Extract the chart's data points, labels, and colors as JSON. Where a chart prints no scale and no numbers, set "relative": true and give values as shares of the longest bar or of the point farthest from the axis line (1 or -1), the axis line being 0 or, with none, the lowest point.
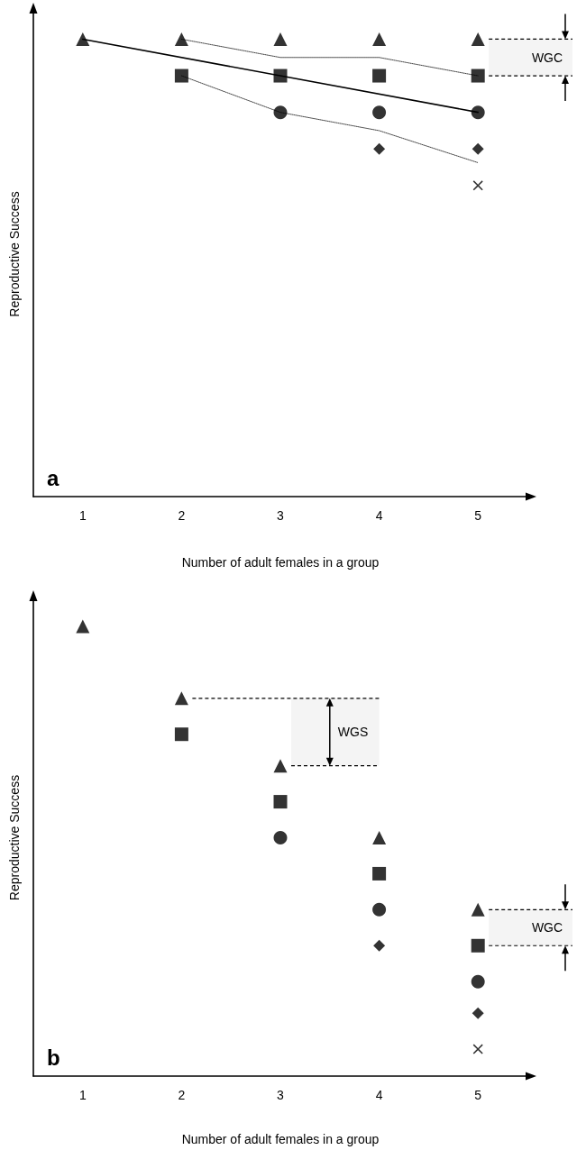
{
  "chart_data": [
    {
      "type": "scatter",
      "relative": true,
      "xlabel": "Number of adult females in a group",
      "ylabel": "Reproductive Success",
      "xlim": [
        0.5,
        5.5
      ],
      "xticks": [
        1,
        2,
        3,
        4,
        5
      ],
      "grid": false,
      "annotations": [
        "a"
      ],
      "bands": [
        {
          "axis": "y",
          "from": 0.92,
          "to": 1,
          "label": "WGC"
        }
      ],
      "series": [
        {
          "type": "line",
          "marker": "none",
          "line_style": "solid",
          "color": "#000000",
          "x": [
            1,
            5
          ],
          "values": [
            1,
            0.84
          ]
        },
        {
          "type": "line",
          "marker": "none",
          "line_style": "dotted",
          "color": "#444444",
          "x": [
            2,
            3,
            4,
            5
          ],
          "values": [
            1,
            0.96,
            0.96,
            0.92
          ]
        },
        {
          "type": "line",
          "marker": "none",
          "line_style": "dotted",
          "color": "#444444",
          "x": [
            2,
            3,
            4,
            5
          ],
          "values": [
            0.92,
            0.84,
            0.8,
            0.73
          ]
        },
        {
          "marker": "triangle",
          "color": "#000000",
          "x": [
            1,
            2,
            3,
            4,
            5
          ],
          "values": [
            1,
            1,
            1,
            1,
            1
          ]
        },
        {
          "marker": "square",
          "color": "#000000",
          "x": [
            2,
            3,
            4,
            5
          ],
          "values": [
            0.92,
            0.92,
            0.92,
            0.92
          ]
        },
        {
          "marker": "circle",
          "color": "#000000",
          "x": [
            3,
            4,
            5
          ],
          "values": [
            0.84,
            0.84,
            0.84
          ]
        },
        {
          "marker": "diamond",
          "color": "#000000",
          "x": [
            4,
            5
          ],
          "values": [
            0.76,
            0.76
          ]
        },
        {
          "marker": "cross",
          "color": "#000000",
          "x": [
            5
          ],
          "values": [
            0.68
          ]
        }
      ]
    },
    {
      "type": "scatter",
      "relative": true,
      "xlabel": "Number of adult females in a group",
      "ylabel": "Reproductive Success",
      "xlim": [
        0.5,
        5.5
      ],
      "xticks": [
        1,
        2,
        3,
        4,
        5
      ],
      "grid": false,
      "annotations": [
        "b"
      ],
      "bands": [
        {
          "axis": "y",
          "from": 0.69,
          "to": 0.84,
          "label": "WGS"
        },
        {
          "axis": "y",
          "from": 0.29,
          "to": 0.37,
          "label": "WGC"
        }
      ],
      "series": [
        {
          "marker": "triangle",
          "color": "#000000",
          "x": [
            1,
            2,
            3,
            4,
            5
          ],
          "values": [
            1,
            0.84,
            0.69,
            0.53,
            0.37
          ]
        },
        {
          "marker": "square",
          "color": "#000000",
          "x": [
            2,
            3,
            4,
            5
          ],
          "values": [
            0.76,
            0.61,
            0.45,
            0.29
          ]
        },
        {
          "marker": "circle",
          "color": "#000000",
          "x": [
            3,
            4,
            5
          ],
          "values": [
            0.53,
            0.37,
            0.21
          ]
        },
        {
          "marker": "diamond",
          "color": "#000000",
          "x": [
            4,
            5
          ],
          "values": [
            0.29,
            0.14
          ]
        },
        {
          "marker": "cross",
          "color": "#000000",
          "x": [
            5
          ],
          "values": [
            0.06
          ]
        }
      ]
    }
  ]
}
